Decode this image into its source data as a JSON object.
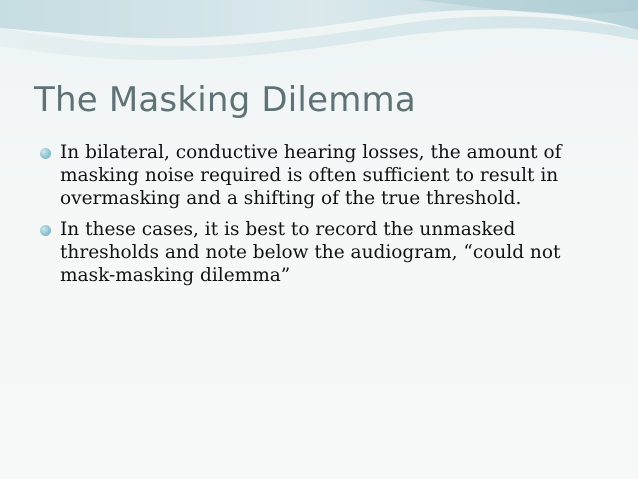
{
  "slide": {
    "title": "The Masking Dilemma",
    "bullets": [
      {
        "text": "In bilateral, conductive hearing losses, the amount of masking noise required is often sufficient to result in overmasking and a shifting of the true threshold."
      },
      {
        "text": "In these cases, it is best to record the unmasked thresholds and note below the audiogram, “could not mask-masking dilemma”"
      }
    ]
  },
  "theme": {
    "title_color": "#5f7276",
    "text_color": "#111111",
    "accent": "#8fc3cf",
    "wave_colors": [
      "#d7e9ec",
      "#bcd9de",
      "#e7f1f2"
    ]
  }
}
